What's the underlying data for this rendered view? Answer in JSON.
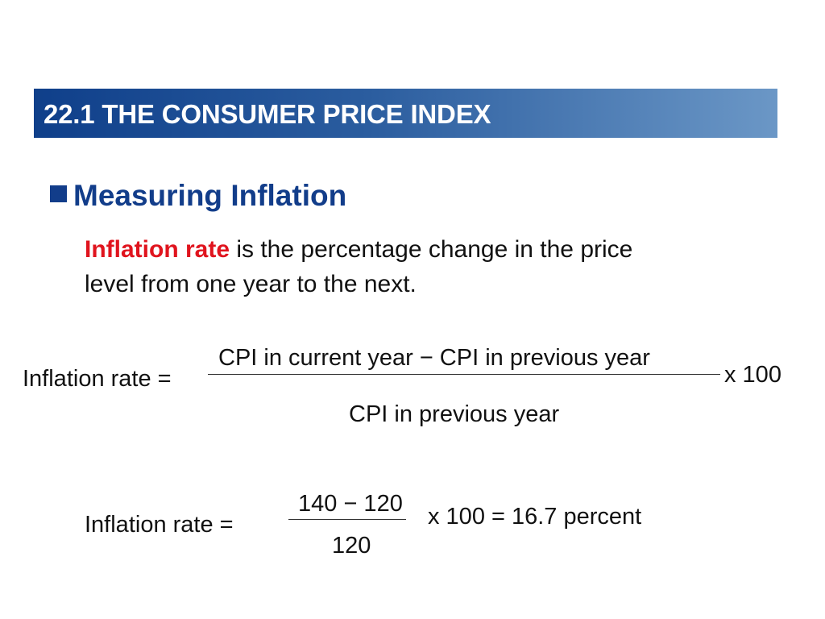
{
  "slide": {
    "title": "22.1 THE CONSUMER PRICE INDEX",
    "heading": "Measuring Inflation",
    "definition": {
      "term": "Inflation rate",
      "text_line1": " is the percentage change in the price",
      "text_line2": "level from one year to the next."
    },
    "formula_general": {
      "lhs": "Inflation rate =",
      "numerator": "CPI in current year − CPI in previous year",
      "denominator": "CPI in previous year",
      "multiplier": "x 100"
    },
    "formula_example": {
      "lhs": "Inflation rate =",
      "numerator": "140 − 120",
      "denominator": "120",
      "result": "x 100 = 16.7 percent"
    },
    "colors": {
      "banner_dark": "#0f3f8a",
      "banner_light": "#6b97c6",
      "heading": "#123d8a",
      "term": "#e0141e"
    }
  }
}
